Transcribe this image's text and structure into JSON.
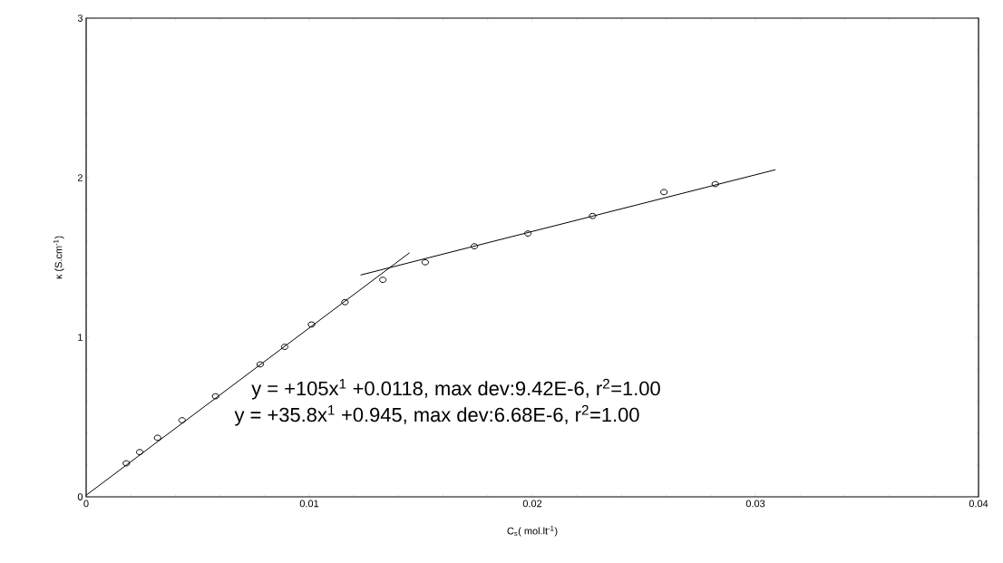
{
  "chart_data": {
    "type": "scatter",
    "xlabel": "C$_{s}$( mol.lt$^{-1}$)",
    "ylabel": "κ (S.cm$^{-1}$)",
    "annotations": [
      "y = +105x$^{1}$ +0.0118, max dev:9.42E-6, r$^{2}$=1.00",
      "y = +35.8x$^{1}$ +0.945, max dev:6.68E-6, r$^{2}$=1.00"
    ],
    "xlim": [
      0,
      0.04
    ],
    "ylim": [
      0,
      3
    ],
    "xticks": [
      0,
      0.01,
      0.02,
      0.03,
      0.04
    ],
    "yticks": [
      0,
      1,
      2,
      3
    ],
    "marker": "circle",
    "series": [
      {
        "color": "#000000",
        "x": [
          0.0018,
          0.0024,
          0.0032,
          0.0043,
          0.0058,
          0.0078,
          0.0089,
          0.0101,
          0.0116,
          0.0133,
          0.0152,
          0.0174,
          0.0198,
          0.0227,
          0.0259,
          0.0282
        ],
        "values": [
          0.21,
          0.28,
          0.37,
          0.48,
          0.63,
          0.83,
          0.94,
          1.08,
          1.22,
          1.36,
          1.47,
          1.57,
          1.65,
          1.76,
          1.91,
          1.96
        ]
      },
      {
        "type": "line",
        "marker": "none",
        "color": "#000000",
        "x": [
          0,
          0.0145
        ],
        "values": [
          0.01,
          1.53
        ]
      },
      {
        "type": "line",
        "marker": "none",
        "color": "#000000",
        "x": [
          0.0123,
          0.0309
        ],
        "values": [
          1.39,
          2.05
        ]
      }
    ]
  }
}
